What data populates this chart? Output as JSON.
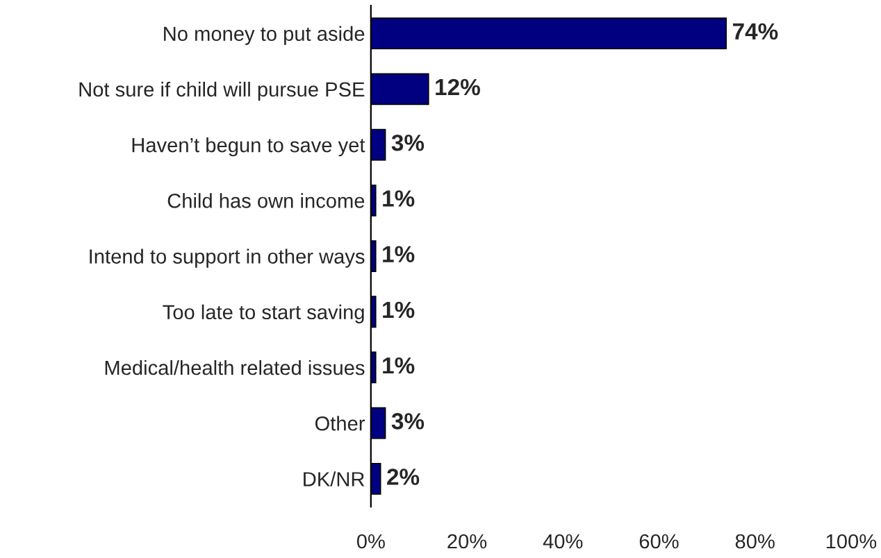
{
  "chart_data": {
    "type": "bar",
    "orientation": "horizontal",
    "categories": [
      "No money to put aside",
      "Not sure if child will pursue PSE",
      "Haven’t begun to save yet",
      "Child has own income",
      "Intend to support in other ways",
      "Too late to start saving",
      "Medical/health related issues",
      "Other",
      "DK/NR"
    ],
    "values": [
      74,
      12,
      3,
      1,
      1,
      1,
      1,
      3,
      2
    ],
    "value_labels": [
      "74%",
      "12%",
      "3%",
      "1%",
      "1%",
      "1%",
      "1%",
      "3%",
      "2%"
    ],
    "color": "#000080",
    "xlim": [
      0,
      100
    ],
    "xticks": [
      {
        "value": 0,
        "label": "0%"
      },
      {
        "value": 20,
        "label": "20%"
      },
      {
        "value": 40,
        "label": "40%"
      },
      {
        "value": 60,
        "label": "60%"
      },
      {
        "value": 80,
        "label": "80%"
      },
      {
        "value": 100,
        "label": "100%"
      }
    ],
    "grid": false,
    "legend": false
  }
}
